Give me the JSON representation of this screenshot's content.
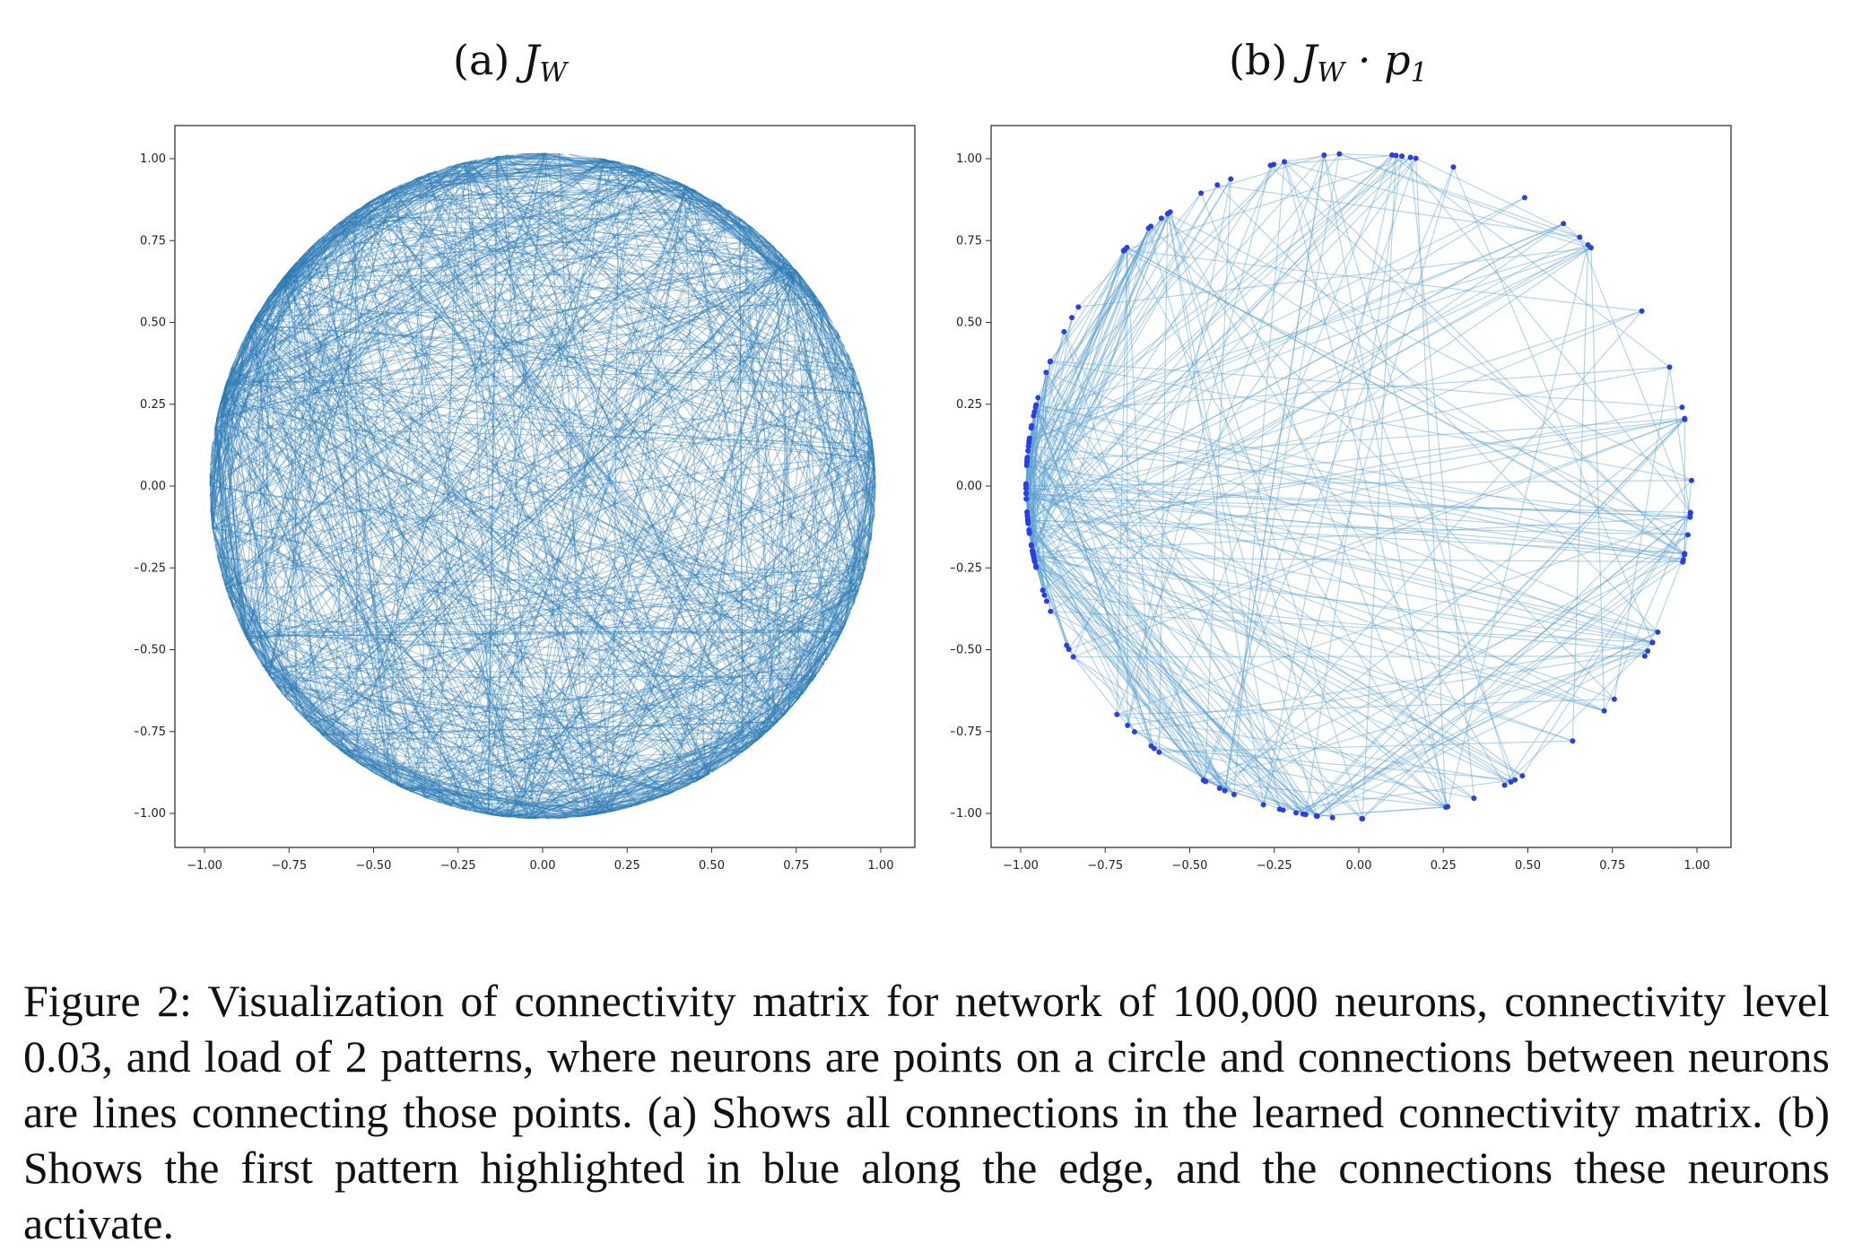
{
  "panels": {
    "a": {
      "label": "(a)",
      "math_main": "J",
      "math_sub": "W",
      "math_rest": ""
    },
    "b": {
      "label": "(b)",
      "math_main": "J",
      "math_sub": "W",
      "math_rest": " · p",
      "math_rest_sub": "1"
    }
  },
  "caption": "Figure 2: Visualization of connectivity matrix for network of 100,000 neurons, connectivity level 0.03, and load of 2 patterns, where neurons are points on a circle and connections between neurons are lines connecting those points. (a) Shows all connections in the learned connectivity matrix. (b) Shows the first pattern highlighted in blue along the edge, and the connections these neurons activate.",
  "chart_data": [
    {
      "type": "scatter",
      "title": "(a) J_W",
      "description_visual": "all connections as chords between points on unit circle",
      "xlim": [
        -1.0,
        1.0
      ],
      "ylim": [
        -1.0,
        1.0
      ],
      "xticks": [
        "−1.00",
        "−0.75",
        "−0.50",
        "−0.25",
        "0.00",
        "0.25",
        "0.50",
        "0.75",
        "1.00"
      ],
      "yticks": [
        "1.00",
        "0.75",
        "0.50",
        "0.25",
        "0.00",
        "−0.25",
        "−0.50",
        "−0.75",
        "−1.00"
      ],
      "line_color": "#2e7db5",
      "edge_count": 1400,
      "grid": false
    },
    {
      "type": "scatter",
      "title": "(b) J_W · p1",
      "xlim": [
        -1.0,
        1.0
      ],
      "ylim": [
        -1.0,
        1.0
      ],
      "xticks": [
        "−1.00",
        "−0.75",
        "−0.50",
        "−0.25",
        "0.00",
        "0.25",
        "0.50",
        "0.75",
        "1.00"
      ],
      "yticks": [
        "1.00",
        "0.75",
        "0.50",
        "0.25",
        "0.00",
        "−0.25",
        "−0.50",
        "−0.75",
        "−1.00"
      ],
      "line_color": "#5b9fd0",
      "point_color": "#2b3fe0",
      "edge_count": 380,
      "highlighted_neuron_count": 150,
      "grid": false
    }
  ]
}
